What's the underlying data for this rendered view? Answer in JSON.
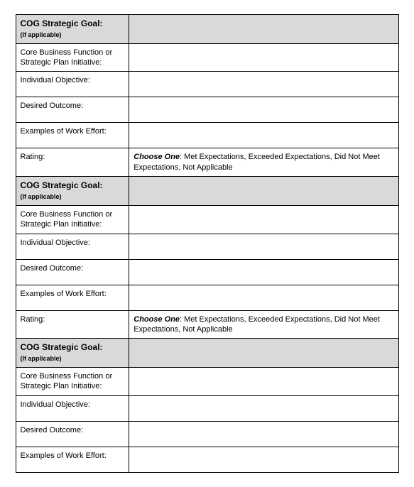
{
  "labels": {
    "goal_title": "COG Strategic Goal:",
    "goal_sub": "(If applicable)",
    "core_business": "Core Business Function or Strategic Plan Initiative:",
    "individual_objective": "Individual Objective:",
    "desired_outcome": "Desired Outcome:",
    "work_effort": "Examples of Work Effort:",
    "rating": "Rating:"
  },
  "rating_text": {
    "prefix": "Choose One",
    "options": ":  Met Expectations, Exceeded Expectations, Did Not Meet Expectations, Not Applicable"
  },
  "colors": {
    "shaded_bg": "#d9d9d9",
    "border": "#000000",
    "page_bg": "#ffffff"
  },
  "layout": {
    "label_col_width": 160,
    "value_col_width": 380,
    "font_size_body": 11,
    "font_size_goal_title": 12,
    "font_size_goal_sub": 9
  }
}
